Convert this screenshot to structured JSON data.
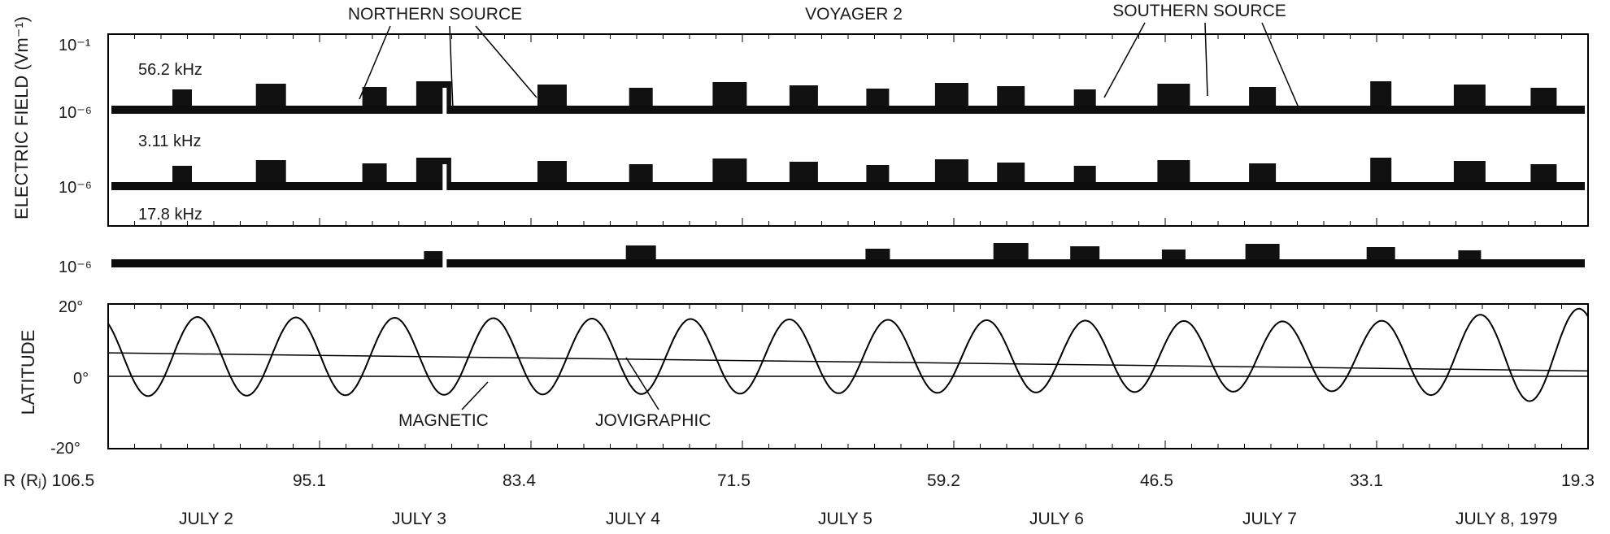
{
  "chart_data": [
    {
      "type": "area",
      "title": "VOYAGER 2",
      "ylabel": "ELECTRIC FIELD (Vm⁻¹)",
      "y_scale": "log",
      "annotations": [
        "NORTHERN SOURCE",
        "SOUTHERN SOURCE"
      ],
      "panels": [
        {
          "name": "56.2 kHz",
          "tick_labels": [
            "10⁻¹",
            "10⁻⁶"
          ],
          "bursts_x": [
            0.05,
            0.11,
            0.18,
            0.22,
            0.3,
            0.36,
            0.42,
            0.47,
            0.52,
            0.57,
            0.61,
            0.66,
            0.72,
            0.78,
            0.86,
            0.92,
            0.97
          ]
        },
        {
          "name": "3.11 kHz",
          "tick_labels": [
            "10⁻⁶"
          ],
          "bursts_x": [
            0.05,
            0.11,
            0.18,
            0.22,
            0.3,
            0.36,
            0.42,
            0.47,
            0.52,
            0.57,
            0.61,
            0.66,
            0.72,
            0.78,
            0.86,
            0.92,
            0.97
          ]
        },
        {
          "name": "17.8 kHz",
          "tick_labels": [
            "10⁻⁶"
          ],
          "bursts_x": [
            0.22,
            0.36,
            0.52,
            0.61,
            0.66,
            0.72,
            0.78,
            0.86,
            0.92
          ]
        }
      ]
    },
    {
      "type": "line",
      "ylabel": "LATITUDE",
      "ylim": [
        -20,
        20
      ],
      "y_ticks": [
        "20°",
        "0°",
        "-20°"
      ],
      "x_ticks_top": [
        "R (Rⱼ) 106.5",
        "95.1",
        "83.4",
        "71.5",
        "59.2",
        "46.5",
        "33.1",
        "19.3"
      ],
      "x_ticks_dates": [
        "JULY 2",
        "JULY 3",
        "JULY 4",
        "JULY 5",
        "JULY 6",
        "JULY 7",
        "JULY 8, 1979"
      ],
      "series": [
        {
          "name": "MAGNETIC",
          "amplitude": 11,
          "offset": 6,
          "cycles": 15
        },
        {
          "name": "JOVIGRAPHIC",
          "start": 6.5,
          "end": 1.5
        }
      ]
    }
  ]
}
